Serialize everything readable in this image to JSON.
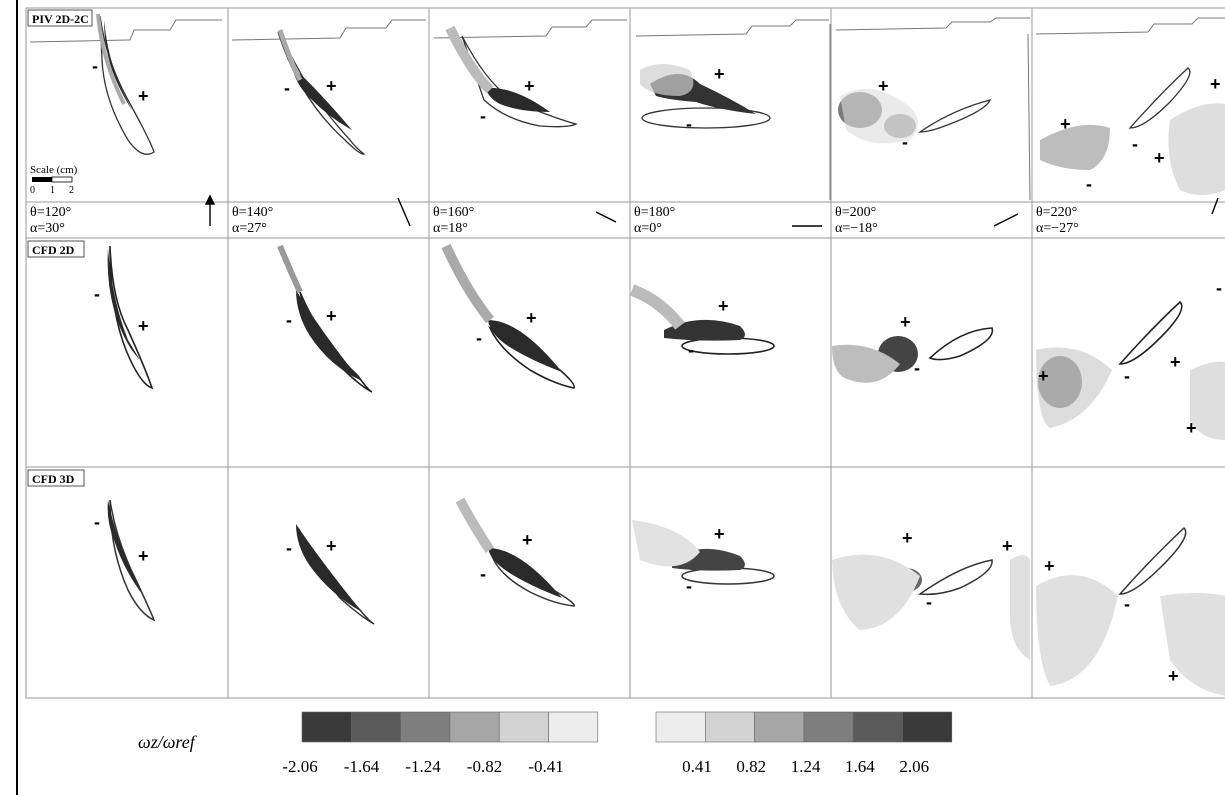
{
  "rows": [
    {
      "label": "PIV 2D-2C"
    },
    {
      "label": "CFD 2D"
    },
    {
      "label": "CFD 3D"
    }
  ],
  "columns": [
    {
      "theta": "θ=120°",
      "alpha": "α=30°"
    },
    {
      "theta": "θ=140°",
      "alpha": "α=27°"
    },
    {
      "theta": "θ=160°",
      "alpha": "α=18°"
    },
    {
      "theta": "θ=180°",
      "alpha": "α=0°"
    },
    {
      "theta": "θ=200°",
      "alpha": "α=−18°"
    },
    {
      "theta": "θ=220°",
      "alpha": "α=−27°"
    }
  ],
  "scale": {
    "title": "Scale (cm)",
    "ticks": [
      "0",
      "1",
      "2"
    ]
  },
  "signs": {
    "plus": "+",
    "minus": "-"
  },
  "colorbar": {
    "label": "ωz/ωref",
    "negative_ticks": [
      "-2.06",
      "-1.64",
      "-1.24",
      "-0.82",
      "-0.41"
    ],
    "positive_ticks": [
      "0.41",
      "0.82",
      "1.24",
      "1.64",
      "2.06"
    ],
    "negative_shades": [
      "#3a3a3a",
      "#5a5a5a",
      "#7e7e7e",
      "#a6a6a6",
      "#d2d2d2",
      "#ededed"
    ],
    "positive_shades": [
      "#ededed",
      "#d2d2d2",
      "#a6a6a6",
      "#7e7e7e",
      "#5a5a5a",
      "#3a3a3a"
    ]
  }
}
